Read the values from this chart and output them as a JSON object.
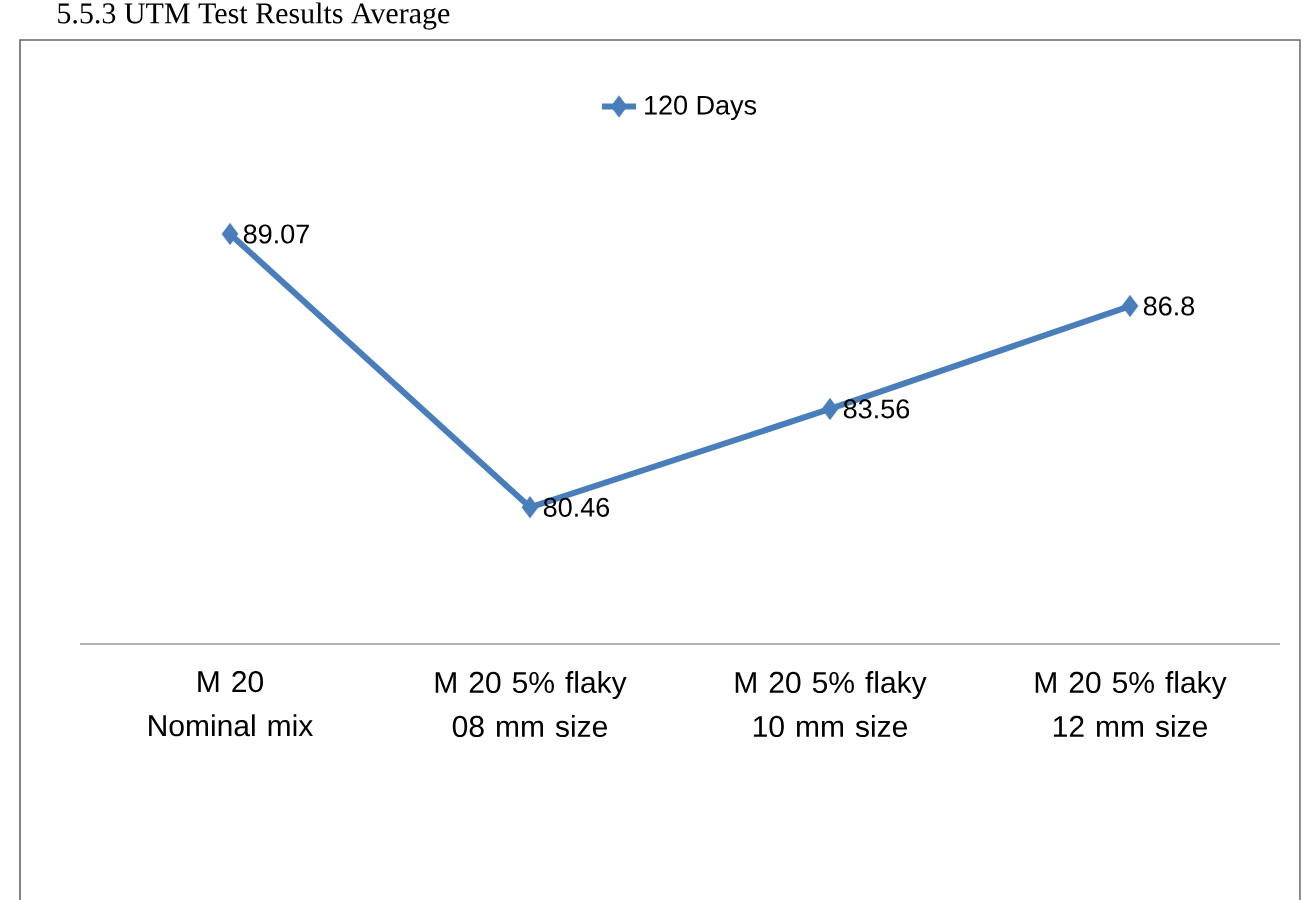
{
  "chart_data": {
    "type": "line",
    "title": "5.5.3 UTM Test Results Average",
    "categories": [
      "M 20 Nominal mix",
      "M 20 5% flaky 08 mm size",
      "M 20 5% flaky 10 mm size",
      "M 20 5% flaky 12 mm size"
    ],
    "series": [
      {
        "name": "120 Days",
        "color": "#4a7ebb",
        "values": [
          89.07,
          80.46,
          83.56,
          86.8
        ]
      }
    ],
    "data_labels": true,
    "legend": "top",
    "marker": "diamond",
    "line_style": "solid"
  }
}
